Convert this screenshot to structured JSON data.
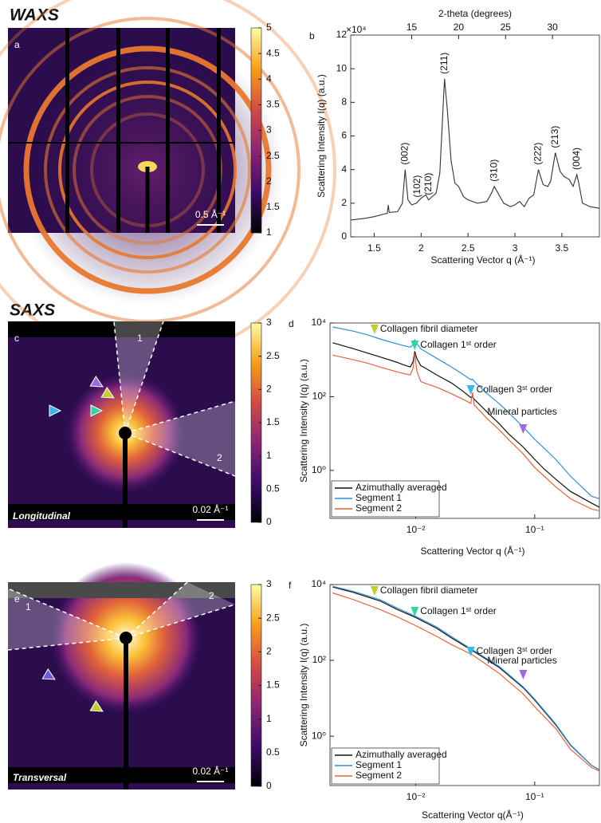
{
  "figure": {
    "section_titles": [
      "WAXS",
      "SAXS"
    ]
  },
  "chart_data": [
    {
      "type": "image",
      "panel_label": "a",
      "clim": [
        1,
        5
      ],
      "cticks": [
        1,
        1.5,
        2,
        2.5,
        3,
        3.5,
        4,
        4.5,
        5
      ],
      "scale_bar": "0.5 Å⁻¹"
    },
    {
      "type": "line",
      "panel_label": "b",
      "log": false,
      "xlabel": "Scattering Vector q (Å⁻¹)",
      "ylabel": "Scattering Intensity I(q) (a.u.)",
      "x2label": "2-theta (degrees)",
      "y_multiplier": "×10⁴",
      "xlim": [
        1.25,
        3.9
      ],
      "xticks": [
        1.5,
        2,
        2.5,
        3,
        3.5
      ],
      "x2lim": [
        8.5,
        35
      ],
      "x2ticks": [
        15,
        20,
        25,
        30
      ],
      "ylim": [
        0,
        120000
      ],
      "yticks": [
        0,
        {
          "value": 20000,
          "label": "2"
        },
        {
          "value": 40000,
          "label": "4"
        },
        {
          "value": 60000,
          "label": "6"
        },
        {
          "value": 80000,
          "label": "8"
        },
        {
          "value": 100000,
          "label": "10"
        },
        {
          "value": 120000,
          "label": "12"
        }
      ],
      "color": "#333333",
      "x": [
        1.25,
        1.4,
        1.5,
        1.6,
        1.64,
        1.65,
        1.66,
        1.75,
        1.8,
        1.83,
        1.86,
        1.9,
        1.95,
        2.0,
        2.05,
        2.08,
        2.12,
        2.16,
        2.2,
        2.25,
        2.28,
        2.32,
        2.36,
        2.4,
        2.45,
        2.5,
        2.6,
        2.7,
        2.75,
        2.78,
        2.82,
        2.88,
        2.95,
        3.0,
        3.05,
        3.1,
        3.15,
        3.2,
        3.25,
        3.3,
        3.35,
        3.38,
        3.43,
        3.48,
        3.52,
        3.58,
        3.62,
        3.66,
        3.68,
        3.72,
        3.8,
        3.9
      ],
      "values": [
        10000,
        11000,
        12000,
        13500,
        14000,
        19000,
        14500,
        15000,
        20000,
        40000,
        22000,
        19000,
        20000,
        23000,
        25000,
        22000,
        24000,
        26000,
        38000,
        94000,
        75000,
        45000,
        32000,
        30000,
        24000,
        22000,
        20000,
        21000,
        26000,
        30000,
        26000,
        20000,
        18000,
        19000,
        21000,
        18000,
        23000,
        25000,
        40000,
        31000,
        30000,
        33000,
        50000,
        39000,
        36000,
        34000,
        30000,
        37000,
        32000,
        20000,
        18000,
        17000
      ],
      "annotations": [
        {
          "text": "(002)",
          "x": 1.83
        },
        {
          "text": "(102)",
          "x": 1.96
        },
        {
          "text": "(210)",
          "x": 2.08
        },
        {
          "text": "(211)",
          "x": 2.25
        },
        {
          "text": "(310)",
          "x": 2.78
        },
        {
          "text": "(222)",
          "x": 3.25
        },
        {
          "text": "(213)",
          "x": 3.43
        },
        {
          "text": "(004)",
          "x": 3.66
        }
      ]
    },
    {
      "type": "image",
      "panel_label": "c",
      "clim": [
        0,
        3
      ],
      "cticks": [
        0,
        0.5,
        1,
        1.5,
        2,
        2.5,
        3
      ],
      "scale_bar": "0.02 Å⁻¹",
      "orientation_label": "Longitudinal",
      "segment_labels": [
        "1",
        "2"
      ]
    },
    {
      "type": "line",
      "panel_label": "d",
      "log": true,
      "xlabel": "Scattering Vector q (Å⁻¹)",
      "ylabel": "Scattering Intensity I(q) (a.u.)",
      "xlim": [
        0.0019,
        0.35
      ],
      "xticks": [
        {
          "value": 0.01,
          "label": "10⁻²"
        },
        {
          "value": 0.1,
          "label": "10⁻¹"
        }
      ],
      "ylim": [
        0.05,
        10000
      ],
      "yticks": [
        {
          "value": 1,
          "label": "10⁰"
        },
        {
          "value": 100,
          "label": "10²"
        },
        {
          "value": 10000,
          "label": "10⁴"
        }
      ],
      "legend": "lower left",
      "x": [
        0.002,
        0.003,
        0.004,
        0.005,
        0.006,
        0.007,
        0.008,
        0.009,
        0.0095,
        0.0098,
        0.0102,
        0.011,
        0.012,
        0.015,
        0.02,
        0.025,
        0.029,
        0.03,
        0.031,
        0.04,
        0.05,
        0.06,
        0.08,
        0.1,
        0.12,
        0.15,
        0.2,
        0.3,
        0.35
      ],
      "series": [
        {
          "name": "Azimuthally averaged",
          "color": "#111111",
          "values": [
            2900,
            2000,
            1500,
            1200,
            1000,
            850,
            720,
            640,
            900,
            1700,
            1100,
            700,
            600,
            390,
            235,
            140,
            95,
            100,
            86,
            38,
            19,
            10,
            4.3,
            2,
            1.1,
            0.58,
            0.27,
            0.13,
            0.1
          ]
        },
        {
          "name": "Segment 1",
          "color": "#2f8fd8",
          "values": [
            7800,
            6000,
            4700,
            3700,
            3100,
            2700,
            2400,
            2200,
            2600,
            3500,
            2800,
            2000,
            1700,
            1100,
            640,
            400,
            290,
            300,
            260,
            120,
            66,
            38,
            15,
            7,
            4,
            2,
            0.7,
            0.2,
            0.17
          ]
        },
        {
          "name": "Segment 2",
          "color": "#e8643c",
          "values": [
            1350,
            1000,
            800,
            640,
            540,
            470,
            420,
            390,
            600,
            1500,
            500,
            260,
            230,
            180,
            120,
            85,
            66,
            130,
            60,
            25,
            13,
            7,
            2.8,
            1.2,
            0.7,
            0.36,
            0.17,
            0.09,
            0.08
          ]
        }
      ],
      "annotations": [
        {
          "text": "Collagen fibril diameter",
          "x": 0.0045,
          "color": "#c4cf2c"
        },
        {
          "text": "Collagen 1ˢᵗ order",
          "x": 0.0098,
          "color": "#2fd6a3"
        },
        {
          "text": "Collagen 3ˢᵗ order",
          "x": 0.029,
          "color": "#35b8f2"
        },
        {
          "text": "Mineral particles",
          "x": 0.08,
          "color": "#9a6ae6"
        }
      ]
    },
    {
      "type": "image",
      "panel_label": "e",
      "clim": [
        0,
        3
      ],
      "cticks": [
        0,
        0.5,
        1,
        1.5,
        2,
        2.5,
        3
      ],
      "scale_bar": "0.02 Å⁻¹",
      "orientation_label": "Transversal",
      "segment_labels": [
        "1",
        "2"
      ]
    },
    {
      "type": "line",
      "panel_label": "f",
      "log": true,
      "xlabel": "Scattering Vector q(Å⁻¹)",
      "ylabel": "Scattering Intensity I(q) (a.u.)",
      "xlim": [
        0.0019,
        0.35
      ],
      "xticks": [
        {
          "value": 0.01,
          "label": "10⁻²"
        },
        {
          "value": 0.1,
          "label": "10⁻¹"
        }
      ],
      "ylim": [
        0.05,
        10000
      ],
      "yticks": [
        {
          "value": 1,
          "label": "10⁰"
        },
        {
          "value": 100,
          "label": "10²"
        },
        {
          "value": 10000,
          "label": "10⁴"
        }
      ],
      "legend": "lower left",
      "x": [
        0.002,
        0.003,
        0.005,
        0.007,
        0.01,
        0.015,
        0.02,
        0.03,
        0.05,
        0.08,
        0.1,
        0.15,
        0.2,
        0.3,
        0.35
      ],
      "series": [
        {
          "name": "Azimuthally averaged",
          "color": "#111111",
          "values": [
            8600,
            6200,
            3700,
            2200,
            1350,
            700,
            390,
            180,
            66,
            19,
            9,
            2,
            0.58,
            0.17,
            0.13
          ]
        },
        {
          "name": "Segment 1",
          "color": "#2f8fd8",
          "values": [
            9000,
            6600,
            4000,
            2400,
            1450,
            760,
            420,
            190,
            70,
            20,
            9.5,
            2.1,
            0.6,
            0.17,
            0.13
          ]
        },
        {
          "name": "Segment 2",
          "color": "#e8643c",
          "values": [
            6000,
            4000,
            2200,
            1400,
            820,
            430,
            260,
            140,
            46,
            13,
            6,
            1.6,
            0.45,
            0.15,
            0.12
          ]
        }
      ],
      "annotations": [
        {
          "text": "Collagen fibril diameter",
          "x": 0.0045,
          "color": "#c4cf2c"
        },
        {
          "text": "Collagen 1ˢᵗ order",
          "x": 0.0098,
          "color": "#2fd6a3"
        },
        {
          "text": "Collagen 3ˢᵗ order",
          "x": 0.029,
          "color": "#35b8f2"
        },
        {
          "text": "Mineral particles",
          "x": 0.08,
          "color": "#9a6ae6"
        }
      ]
    }
  ]
}
